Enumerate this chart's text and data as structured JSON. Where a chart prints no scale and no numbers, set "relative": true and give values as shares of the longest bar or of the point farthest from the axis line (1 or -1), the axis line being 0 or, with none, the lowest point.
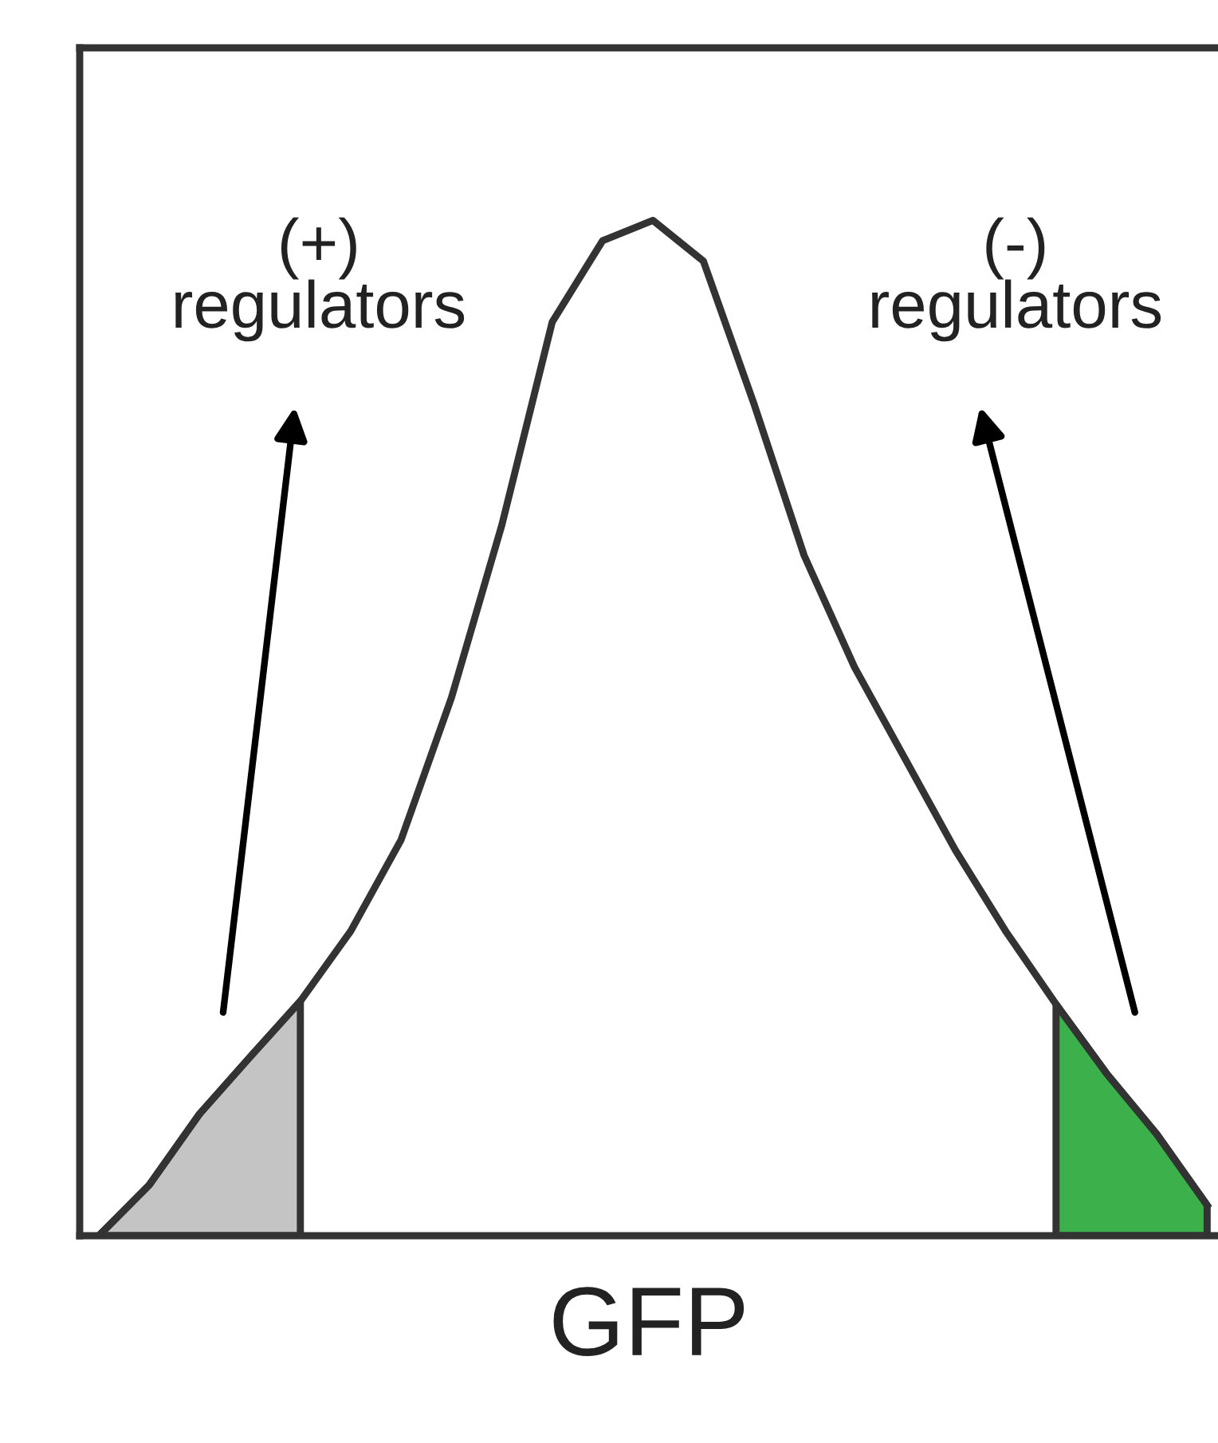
{
  "chart_data": {
    "type": "line",
    "relative": true,
    "xlabel": "GFP",
    "tick_labels": false,
    "categories": [
      null,
      null,
      null,
      null,
      null,
      null,
      null,
      null,
      null,
      null,
      null,
      null,
      null,
      null,
      null,
      null,
      null,
      null,
      null,
      null,
      null,
      null,
      null
    ],
    "series": [
      {
        "color": "#333333",
        "values": [
          0,
          0.05,
          0.12,
          0.176,
          0.231,
          0.3,
          0.39,
          0.53,
          0.7,
          0.9,
          0.98,
          1.0,
          0.96,
          0.82,
          0.67,
          0.56,
          0.47,
          0.38,
          0.3,
          0.228,
          0.16,
          0.1,
          0.03
        ]
      },
      {
        "type": "area",
        "color": "#c4c4c4",
        "values": [
          0,
          0.05,
          0.12,
          0.176,
          0.231,
          null,
          null,
          null,
          null,
          null,
          null,
          null,
          null,
          null,
          null,
          null,
          null,
          null,
          null,
          null,
          null,
          null,
          null
        ]
      },
      {
        "type": "area",
        "color": "#3cb04a",
        "values": [
          null,
          null,
          null,
          null,
          null,
          null,
          null,
          null,
          null,
          null,
          null,
          null,
          null,
          null,
          null,
          null,
          null,
          null,
          null,
          0.228,
          0.16,
          0.1,
          0.03
        ]
      }
    ],
    "annotations": [
      "(+)\nregulators",
      "(-)\nregulators"
    ]
  }
}
